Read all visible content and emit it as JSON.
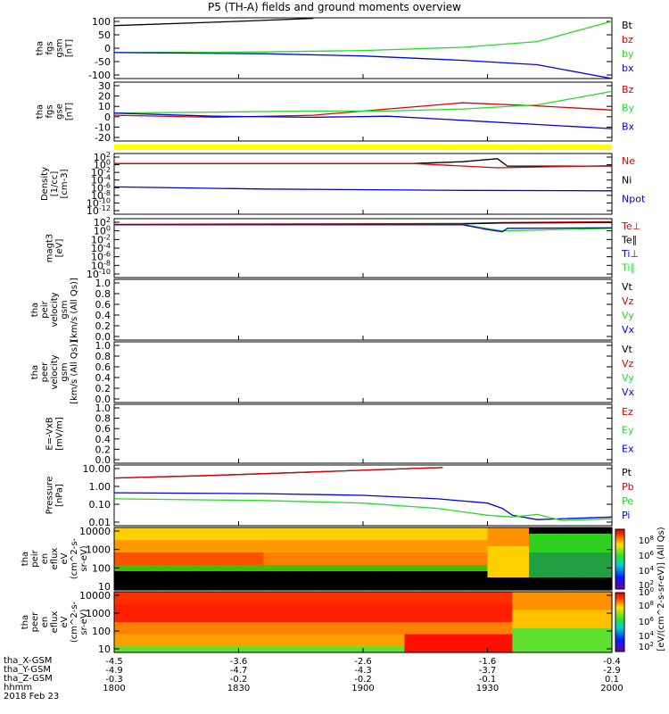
{
  "title": "P5 (TH-A) fields and ground moments overview",
  "date": "2018 Feb 23",
  "colors": {
    "black": "#000000",
    "red": "#e00000",
    "green": "#20e020",
    "blue": "#0000ee",
    "yellow": "#ffff00"
  },
  "chart_data": {
    "type": "line",
    "x_range": [
      "1800",
      "2000"
    ],
    "x_ticks": [
      "1800",
      "1830",
      "1900",
      "1930",
      "2000"
    ],
    "panels": [
      {
        "id": "fgs-gsm",
        "ylabel": [
          "tha",
          "fgs",
          "gsm",
          "[nT]"
        ],
        "yticks": [
          "100",
          "50",
          "0",
          "-50",
          "-100"
        ],
        "ylim": [
          -100,
          110
        ],
        "legend": [
          {
            "text": "Bt",
            "color": "black"
          },
          {
            "text": "bz",
            "color": "red"
          },
          {
            "text": "by",
            "color": "green"
          },
          {
            "text": "bx",
            "color": "blue"
          }
        ],
        "series": [
          {
            "color": "black",
            "points": [
              [
                0,
                83
              ],
              [
                0.2,
                95
              ],
              [
                0.4,
                108
              ]
            ]
          },
          {
            "color": "green",
            "points": [
              [
                0,
                -10
              ],
              [
                0.3,
                -8
              ],
              [
                0.5,
                -3
              ],
              [
                0.7,
                8
              ],
              [
                0.85,
                28
              ],
              [
                1,
                98
              ]
            ]
          },
          {
            "color": "blue",
            "points": [
              [
                0,
                -10
              ],
              [
                0.3,
                -14
              ],
              [
                0.5,
                -22
              ],
              [
                0.7,
                -37
              ],
              [
                0.85,
                -52
              ],
              [
                1,
                -100
              ]
            ]
          }
        ]
      },
      {
        "id": "fgs-gse",
        "ylabel": [
          "tha",
          "fgs",
          "gse",
          "[nT]"
        ],
        "yticks": [
          "30",
          "20",
          "10",
          "0",
          "-10",
          "-20"
        ],
        "ylim": [
          -25,
          32
        ],
        "legend": [
          {
            "text": "Bz",
            "color": "red"
          },
          {
            "text": "By",
            "color": "green"
          },
          {
            "text": "Bx",
            "color": "blue"
          }
        ],
        "series": [
          {
            "color": "red",
            "points": [
              [
                0,
                0
              ],
              [
                0.2,
                -2
              ],
              [
                0.4,
                0
              ],
              [
                0.55,
                6
              ],
              [
                0.7,
                12
              ],
              [
                0.85,
                9
              ],
              [
                1,
                5
              ]
            ]
          },
          {
            "color": "green",
            "points": [
              [
                0,
                2
              ],
              [
                0.2,
                3
              ],
              [
                0.4,
                4
              ],
              [
                0.55,
                4
              ],
              [
                0.7,
                6
              ],
              [
                0.85,
                10
              ],
              [
                1,
                23
              ]
            ]
          },
          {
            "color": "blue",
            "points": [
              [
                0,
                2
              ],
              [
                0.2,
                -1
              ],
              [
                0.4,
                -2
              ],
              [
                0.55,
                -1
              ],
              [
                0.7,
                -5
              ],
              [
                0.85,
                -9
              ],
              [
                1,
                -13
              ]
            ]
          }
        ]
      },
      {
        "id": "density",
        "ylabel": [
          "Density",
          "[1/cc]",
          "[cm-3]"
        ],
        "yticks": [
          "10^2",
          "10^0",
          "10^-2",
          "10^-4",
          "10^-6",
          "10^-8",
          "10^-10",
          "10^-12"
        ],
        "log": true,
        "ylim": [
          -12,
          2
        ],
        "legend": [
          {
            "text": "Ne",
            "color": "red"
          },
          {
            "text": "Ni",
            "color": "black"
          },
          {
            "text": "Npot",
            "color": "blue"
          }
        ],
        "series": [
          {
            "color": "black",
            "points": [
              [
                0,
                -0.3
              ],
              [
                0.6,
                -0.3
              ],
              [
                0.7,
                0.1
              ],
              [
                0.77,
                0.8
              ],
              [
                0.79,
                -0.9
              ],
              [
                1,
                -0.9
              ]
            ]
          },
          {
            "color": "red",
            "points": [
              [
                0,
                -0.3
              ],
              [
                0.6,
                -0.3
              ],
              [
                0.77,
                -1.3
              ],
              [
                1,
                -0.8
              ]
            ]
          },
          {
            "color": "blue",
            "points": [
              [
                0,
                -5.7
              ],
              [
                0.3,
                -6.2
              ],
              [
                0.7,
                -6.5
              ],
              [
                1,
                -6.6
              ]
            ]
          }
        ]
      },
      {
        "id": "temp",
        "ylabel": [
          "magt3",
          "[eV]"
        ],
        "yticks": [
          "10^2",
          "10^0",
          "10^-2",
          "10^-4",
          "10^-6",
          "10^-8",
          "10^-10"
        ],
        "log": true,
        "ylim": [
          -11,
          2.5
        ],
        "legend": [
          {
            "text": "Te⊥",
            "color": "red"
          },
          {
            "text": "Te∥",
            "color": "black"
          },
          {
            "text": "Ti⊥",
            "color": "blue"
          },
          {
            "text": "Ti∥",
            "color": "green"
          }
        ],
        "series": [
          {
            "color": "red",
            "points": [
              [
                0,
                1.2
              ],
              [
                0.7,
                1.4
              ],
              [
                0.78,
                1.6
              ],
              [
                1,
                1.8
              ]
            ]
          },
          {
            "color": "black",
            "points": [
              [
                0,
                1.1
              ],
              [
                0.7,
                1.3
              ],
              [
                0.78,
                1.5
              ],
              [
                1,
                1.6
              ]
            ]
          },
          {
            "color": "green",
            "points": [
              [
                0,
                1.1
              ],
              [
                0.7,
                1.2
              ],
              [
                0.75,
                0.2
              ],
              [
                0.78,
                -0.3
              ],
              [
                1,
                0.3
              ]
            ]
          },
          {
            "color": "blue",
            "points": [
              [
                0,
                1.1
              ],
              [
                0.7,
                1.1
              ],
              [
                0.75,
                0.0
              ],
              [
                0.78,
                -0.5
              ],
              [
                0.79,
                0.3
              ],
              [
                1,
                0.4
              ]
            ]
          }
        ]
      },
      {
        "id": "peir-vel",
        "ylabel": [
          "tha",
          "peir",
          "velocity",
          "gsm",
          "[km/s (All Qs)]"
        ],
        "yticks": [
          "1.0",
          "0.8",
          "0.6",
          "0.4",
          "0.2",
          "0.0"
        ],
        "ylim": [
          0,
          1
        ],
        "legend": [
          {
            "text": "Vt",
            "color": "black"
          },
          {
            "text": "Vz",
            "color": "red"
          },
          {
            "text": "Vy",
            "color": "green"
          },
          {
            "text": "Vx",
            "color": "blue"
          }
        ],
        "series": []
      },
      {
        "id": "peer-vel",
        "ylabel": [
          "tha",
          "peer",
          "velocity",
          "gsm",
          "[km/s (All Qs)]"
        ],
        "yticks": [
          "1.0",
          "0.8",
          "0.6",
          "0.4",
          "0.2",
          "0.0"
        ],
        "ylim": [
          0,
          1
        ],
        "legend": [
          {
            "text": "Vt",
            "color": "black"
          },
          {
            "text": "Vz",
            "color": "red"
          },
          {
            "text": "Vy",
            "color": "green"
          },
          {
            "text": "Vx",
            "color": "blue"
          }
        ],
        "series": []
      },
      {
        "id": "efield",
        "ylabel": [
          "E=-VxB",
          "[mV/m]"
        ],
        "yticks": [
          "1.0",
          "0.8",
          "0.6",
          "0.4",
          "0.2",
          "0.0"
        ],
        "ylim": [
          0,
          1
        ],
        "legend": [
          {
            "text": "Ez",
            "color": "red"
          },
          {
            "text": "Ey",
            "color": "green"
          },
          {
            "text": "Ex",
            "color": "blue"
          }
        ],
        "series": []
      },
      {
        "id": "pressure",
        "ylabel": [
          "Pressure",
          "[nPa]"
        ],
        "yticks": [
          "10.00",
          "1.00",
          "0.10",
          "0.01"
        ],
        "log": true,
        "ylim": [
          -2.3,
          1.2
        ],
        "legend": [
          {
            "text": "Pt",
            "color": "black"
          },
          {
            "text": "Pb",
            "color": "red"
          },
          {
            "text": "Pe",
            "color": "green"
          },
          {
            "text": "Pi",
            "color": "blue"
          }
        ],
        "series": [
          {
            "color": "black",
            "points": [
              [
                0,
                0.45
              ],
              [
                0.2,
                0.6
              ],
              [
                0.4,
                0.8
              ],
              [
                0.6,
                1.0
              ],
              [
                0.66,
                1.05
              ]
            ]
          },
          {
            "color": "red",
            "points": [
              [
                0,
                0.45
              ],
              [
                0.2,
                0.6
              ],
              [
                0.4,
                0.8
              ],
              [
                0.6,
                1.0
              ],
              [
                0.66,
                1.05
              ]
            ]
          },
          {
            "color": "blue",
            "points": [
              [
                0,
                -0.4
              ],
              [
                0.3,
                -0.45
              ],
              [
                0.5,
                -0.55
              ],
              [
                0.65,
                -0.75
              ],
              [
                0.75,
                -1.0
              ],
              [
                0.78,
                -1.3
              ],
              [
                0.8,
                -1.7
              ],
              [
                0.85,
                -1.95
              ],
              [
                1,
                -1.8
              ]
            ]
          },
          {
            "color": "green",
            "points": [
              [
                0,
                -0.75
              ],
              [
                0.3,
                -0.85
              ],
              [
                0.5,
                -1.0
              ],
              [
                0.65,
                -1.3
              ],
              [
                0.75,
                -1.7
              ],
              [
                0.8,
                -1.8
              ],
              [
                0.85,
                -1.65
              ],
              [
                0.9,
                -2.0
              ],
              [
                1,
                -1.9
              ]
            ]
          }
        ]
      },
      {
        "id": "peir-eflux",
        "ylabel": [
          "tha",
          "peir",
          "en",
          "eflux",
          "eV",
          "(cm^2-s-",
          "sr-eV)"
        ],
        "yticks": [
          "10000",
          "1000",
          "100",
          "10"
        ],
        "type": "heatmap"
      },
      {
        "id": "peer-eflux",
        "ylabel": [
          "tha",
          "peer",
          "en",
          "eflux",
          "eV",
          "(cm^2-s-",
          "sr-eV)"
        ],
        "yticks": [
          "10000",
          "1000",
          "100",
          "10"
        ],
        "type": "heatmap"
      }
    ],
    "colorbar": {
      "label": "[eV/(cm^2-s-sr-eV)] (All Qs)",
      "ticks": [
        "10^8",
        "10^6",
        "10^4",
        "10^2",
        "10^0",
        "10^8",
        "10^6",
        "10^4",
        "10^2"
      ]
    },
    "xaxis_rows": [
      {
        "label": "tha_X-GSM",
        "values": [
          "-4.5",
          "-3.6",
          "-2.6",
          "-1.6",
          "-0.4"
        ]
      },
      {
        "label": "tha_Y-GSM",
        "values": [
          "-4.9",
          "-4.7",
          "-4.3",
          "-3.7",
          "-2.9"
        ]
      },
      {
        "label": "tha_Z-GSM",
        "values": [
          "-0.3",
          "-0.2",
          "-0.2",
          "-0.1",
          "0.1"
        ]
      },
      {
        "label": "hhmm",
        "values": [
          "1800",
          "1830",
          "1900",
          "1930",
          "2000"
        ]
      }
    ]
  }
}
